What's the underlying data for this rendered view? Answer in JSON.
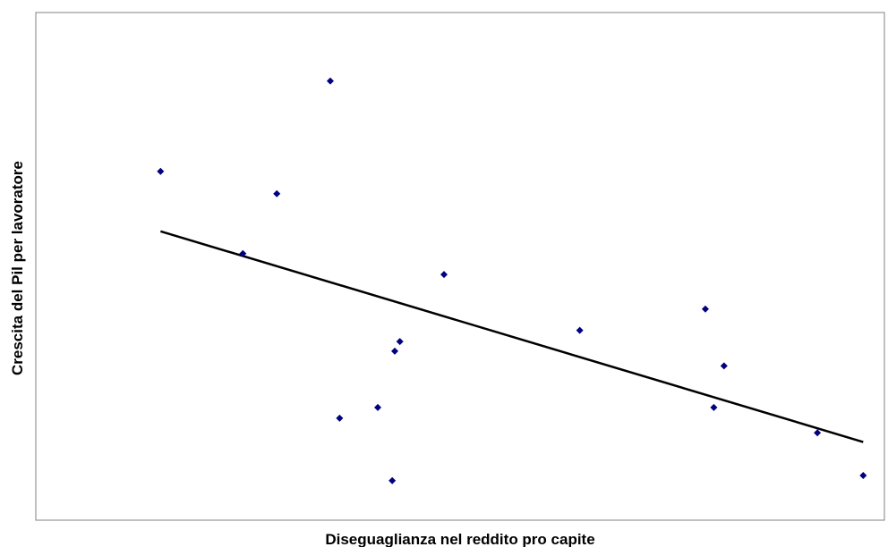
{
  "chart_data": {
    "type": "scatter",
    "title": "",
    "xlabel": "Diseguaglianza nel reddito pro capite",
    "ylabel": "Crescita del Pil per lavoratore",
    "xlim": [
      0,
      100
    ],
    "ylim": [
      0,
      100
    ],
    "grid": false,
    "legend": "none",
    "axes_ticks_visible": false,
    "series": [
      {
        "points": [
          {
            "x": 14.7,
            "y": 68.7
          },
          {
            "x": 34.7,
            "y": 86.5
          },
          {
            "x": 28.4,
            "y": 64.3
          },
          {
            "x": 24.4,
            "y": 52.5
          },
          {
            "x": 48.1,
            "y": 48.4
          },
          {
            "x": 42.9,
            "y": 35.2
          },
          {
            "x": 42.3,
            "y": 33.3
          },
          {
            "x": 64.1,
            "y": 37.4
          },
          {
            "x": 78.9,
            "y": 41.6
          },
          {
            "x": 81.1,
            "y": 30.4
          },
          {
            "x": 79.9,
            "y": 22.2
          },
          {
            "x": 35.8,
            "y": 20.1
          },
          {
            "x": 40.3,
            "y": 22.2
          },
          {
            "x": 92.1,
            "y": 17.2
          },
          {
            "x": 97.5,
            "y": 8.8
          },
          {
            "x": 42.0,
            "y": 7.8
          }
        ]
      }
    ],
    "trendline": {
      "x": [
        14.7,
        97.5
      ],
      "y": [
        56.9,
        15.4
      ]
    },
    "colors": {
      "marker": "#000080",
      "trendline": "#000000",
      "plot_border": "#808080"
    }
  }
}
